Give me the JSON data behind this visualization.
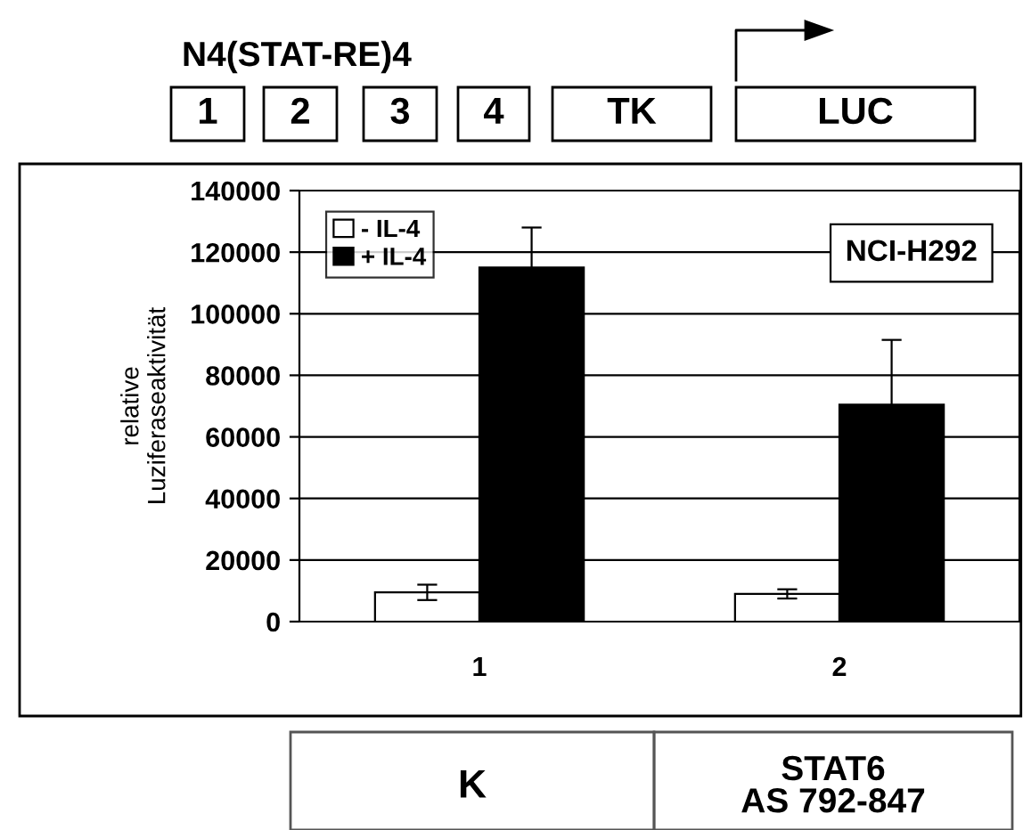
{
  "chart_data": {
    "type": "bar",
    "title": "N4(STAT-RE)4",
    "ylabel": "relative\nLuziferaseaktivität",
    "categories": [
      "1",
      "2"
    ],
    "series": [
      {
        "name": "- IL-4",
        "color": "#ffffff",
        "values": [
          9500,
          9000
        ],
        "errors": [
          2500,
          1500
        ]
      },
      {
        "name": "+ IL-4",
        "color": "#000000",
        "values": [
          115000,
          70500
        ],
        "errors": [
          13000,
          21000
        ]
      }
    ],
    "ylim": [
      0,
      140000
    ],
    "yticks": [
      0,
      20000,
      40000,
      60000,
      80000,
      100000,
      120000,
      140000
    ],
    "grid": "y",
    "legend": "top left",
    "annotations": [
      "1",
      "2",
      "3",
      "4",
      "TK",
      "LUC",
      "NCI-H292",
      "K",
      "STAT6\nAS 792-847"
    ]
  }
}
